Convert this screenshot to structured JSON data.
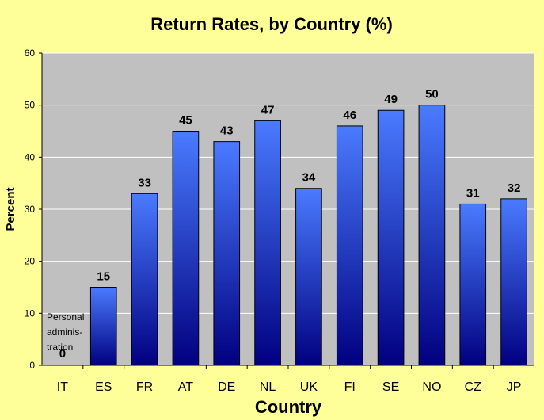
{
  "chart_data": {
    "type": "bar",
    "title": "Return Rates, by Country (%)",
    "xlabel": "Country",
    "ylabel": "Percent",
    "categories": [
      "IT",
      "ES",
      "FR",
      "AT",
      "DE",
      "NL",
      "UK",
      "FI",
      "SE",
      "NO",
      "CZ",
      "JP"
    ],
    "values": [
      0,
      15,
      33,
      45,
      43,
      47,
      34,
      46,
      49,
      50,
      31,
      32
    ],
    "data_labels": [
      "0",
      "15",
      "33",
      "45",
      "43",
      "47",
      "34",
      "46",
      "49",
      "50",
      "31",
      "32"
    ],
    "ylim": [
      0,
      60
    ],
    "yticks": [
      0,
      10,
      20,
      30,
      40,
      50,
      60
    ],
    "grid": true,
    "annotations": [
      {
        "category": "IT",
        "lines": [
          "Personal",
          "adminis-",
          "tration"
        ]
      }
    ],
    "colors": {
      "background": "#ffff99",
      "plot_area": "#c0c0c0",
      "bar_light": "#4a7bff",
      "bar_dark": "#000080",
      "grid": "#ffffff"
    }
  }
}
